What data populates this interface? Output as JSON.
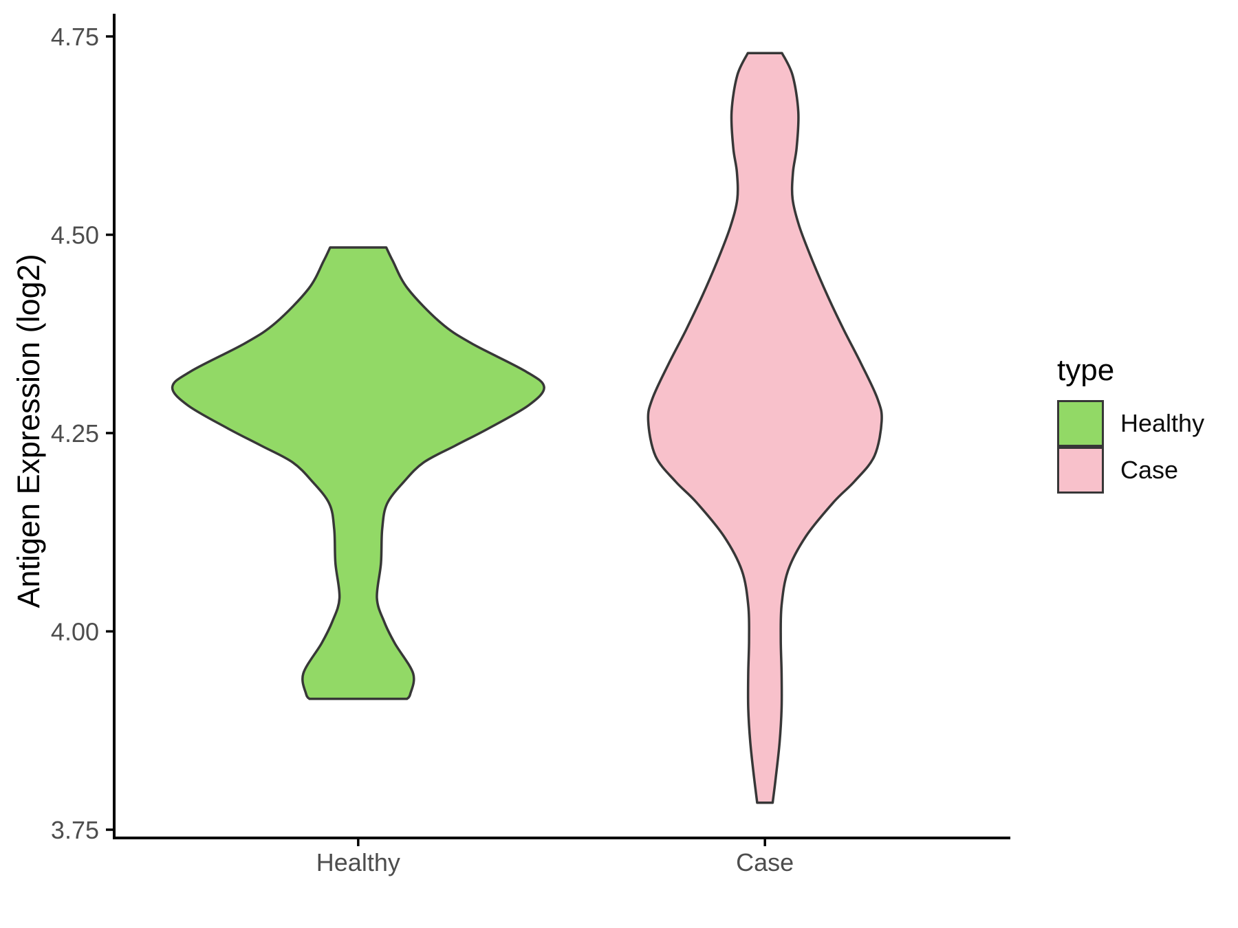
{
  "chart_data": {
    "type": "violin",
    "title": "",
    "xlabel": "",
    "ylabel": "Antigen Expression (log2)",
    "categories": [
      "Healthy",
      "Case"
    ],
    "y_ticks": [
      {
        "value": 4.75,
        "label": "4.75"
      },
      {
        "value": 4.5,
        "label": "4.50"
      },
      {
        "value": 4.25,
        "label": "4.25"
      },
      {
        "value": 4.0,
        "label": "4.00"
      },
      {
        "value": 3.75,
        "label": "3.75"
      }
    ],
    "ylim": [
      3.74,
      4.78
    ],
    "grid": "off",
    "legend": {
      "title": "type",
      "position": "right",
      "entries": [
        {
          "label": "Healthy",
          "color": "#92d966"
        },
        {
          "label": "Case",
          "color": "#f8c1cb"
        }
      ]
    },
    "styles": {
      "axis_line_color": "#000000",
      "tick_color": "#000000",
      "tick_label_color": "#4d4d4d",
      "violin_stroke": "#373737",
      "background": "#ffffff"
    },
    "series": [
      {
        "name": "Healthy",
        "fill": "#92d966",
        "x_index": 0,
        "y_min": 3.915,
        "y_max": 4.484,
        "mode_y": 4.308,
        "profile": [
          [
            4.484,
            0.069
          ],
          [
            4.467,
            0.085
          ],
          [
            4.432,
            0.122
          ],
          [
            4.389,
            0.203
          ],
          [
            4.363,
            0.279
          ],
          [
            4.328,
            0.411
          ],
          [
            4.308,
            0.457
          ],
          [
            4.285,
            0.419
          ],
          [
            4.256,
            0.321
          ],
          [
            4.234,
            0.238
          ],
          [
            4.213,
            0.161
          ],
          [
            4.189,
            0.113
          ],
          [
            4.161,
            0.071
          ],
          [
            4.129,
            0.059
          ],
          [
            4.086,
            0.056
          ],
          [
            4.042,
            0.046
          ],
          [
            4.012,
            0.064
          ],
          [
            3.985,
            0.09
          ],
          [
            3.947,
            0.135
          ],
          [
            3.921,
            0.128
          ],
          [
            3.915,
            0.12
          ]
        ]
      },
      {
        "name": "Case",
        "fill": "#f8c1cb",
        "x_index": 1,
        "y_min": 3.784,
        "y_max": 4.729,
        "mode_y": 4.265,
        "profile": [
          [
            4.729,
            0.042
          ],
          [
            4.701,
            0.068
          ],
          [
            4.655,
            0.082
          ],
          [
            4.61,
            0.078
          ],
          [
            4.579,
            0.069
          ],
          [
            4.545,
            0.068
          ],
          [
            4.51,
            0.085
          ],
          [
            4.467,
            0.117
          ],
          [
            4.423,
            0.154
          ],
          [
            4.38,
            0.194
          ],
          [
            4.337,
            0.237
          ],
          [
            4.293,
            0.277
          ],
          [
            4.265,
            0.287
          ],
          [
            4.221,
            0.269
          ],
          [
            4.189,
            0.22
          ],
          [
            4.163,
            0.169
          ],
          [
            4.12,
            0.101
          ],
          [
            4.077,
            0.057
          ],
          [
            4.033,
            0.041
          ],
          [
            3.99,
            0.039
          ],
          [
            3.947,
            0.041
          ],
          [
            3.903,
            0.041
          ],
          [
            3.86,
            0.036
          ],
          [
            3.817,
            0.027
          ],
          [
            3.784,
            0.019
          ]
        ]
      }
    ]
  }
}
